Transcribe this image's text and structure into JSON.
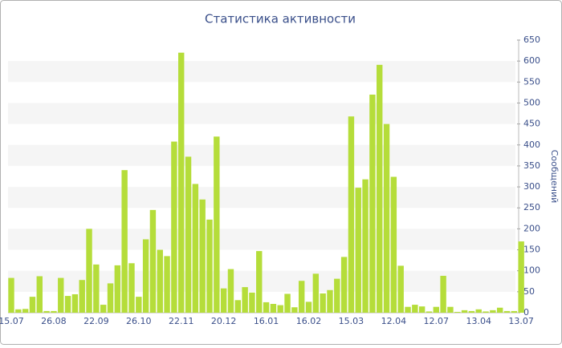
{
  "chart_data": {
    "type": "bar",
    "title": "Статистика активности",
    "y_axis_label": "Сообщений",
    "categories": [
      "15.07",
      null,
      null,
      null,
      null,
      null,
      "26.08",
      null,
      null,
      null,
      null,
      null,
      "22.09",
      null,
      null,
      null,
      null,
      null,
      "26.10",
      null,
      null,
      null,
      null,
      null,
      "22.11",
      null,
      null,
      null,
      null,
      null,
      "20.12",
      null,
      null,
      null,
      null,
      null,
      "16.01",
      null,
      null,
      null,
      null,
      null,
      "16.02",
      null,
      null,
      null,
      null,
      null,
      "15.03",
      null,
      null,
      null,
      null,
      null,
      "12.04",
      null,
      null,
      null,
      null,
      null,
      "12.07",
      null,
      null,
      null,
      null,
      null,
      "13.04",
      null,
      null,
      null,
      null,
      null,
      "13.07"
    ],
    "values": [
      83,
      8,
      9,
      38,
      87,
      4,
      4,
      83,
      40,
      44,
      78,
      200,
      115,
      19,
      70,
      113,
      340,
      118,
      38,
      175,
      245,
      150,
      135,
      408,
      620,
      372,
      307,
      270,
      222,
      420,
      58,
      104,
      30,
      61,
      48,
      147,
      25,
      21,
      18,
      45,
      13,
      76,
      26,
      93,
      46,
      54,
      81,
      133,
      468,
      298,
      318,
      520,
      591,
      450,
      324,
      112,
      14,
      19,
      15,
      3,
      14,
      88,
      14,
      2,
      6,
      4,
      8,
      3,
      6,
      12,
      4,
      4,
      170
    ],
    "color": "#b5dd3a",
    "ylim": [
      0,
      650
    ],
    "yticks": [
      0,
      50,
      100,
      150,
      200,
      250,
      300,
      350,
      400,
      450,
      500,
      550,
      600,
      650
    ],
    "grid": "bands",
    "y_axis_side": "right"
  }
}
